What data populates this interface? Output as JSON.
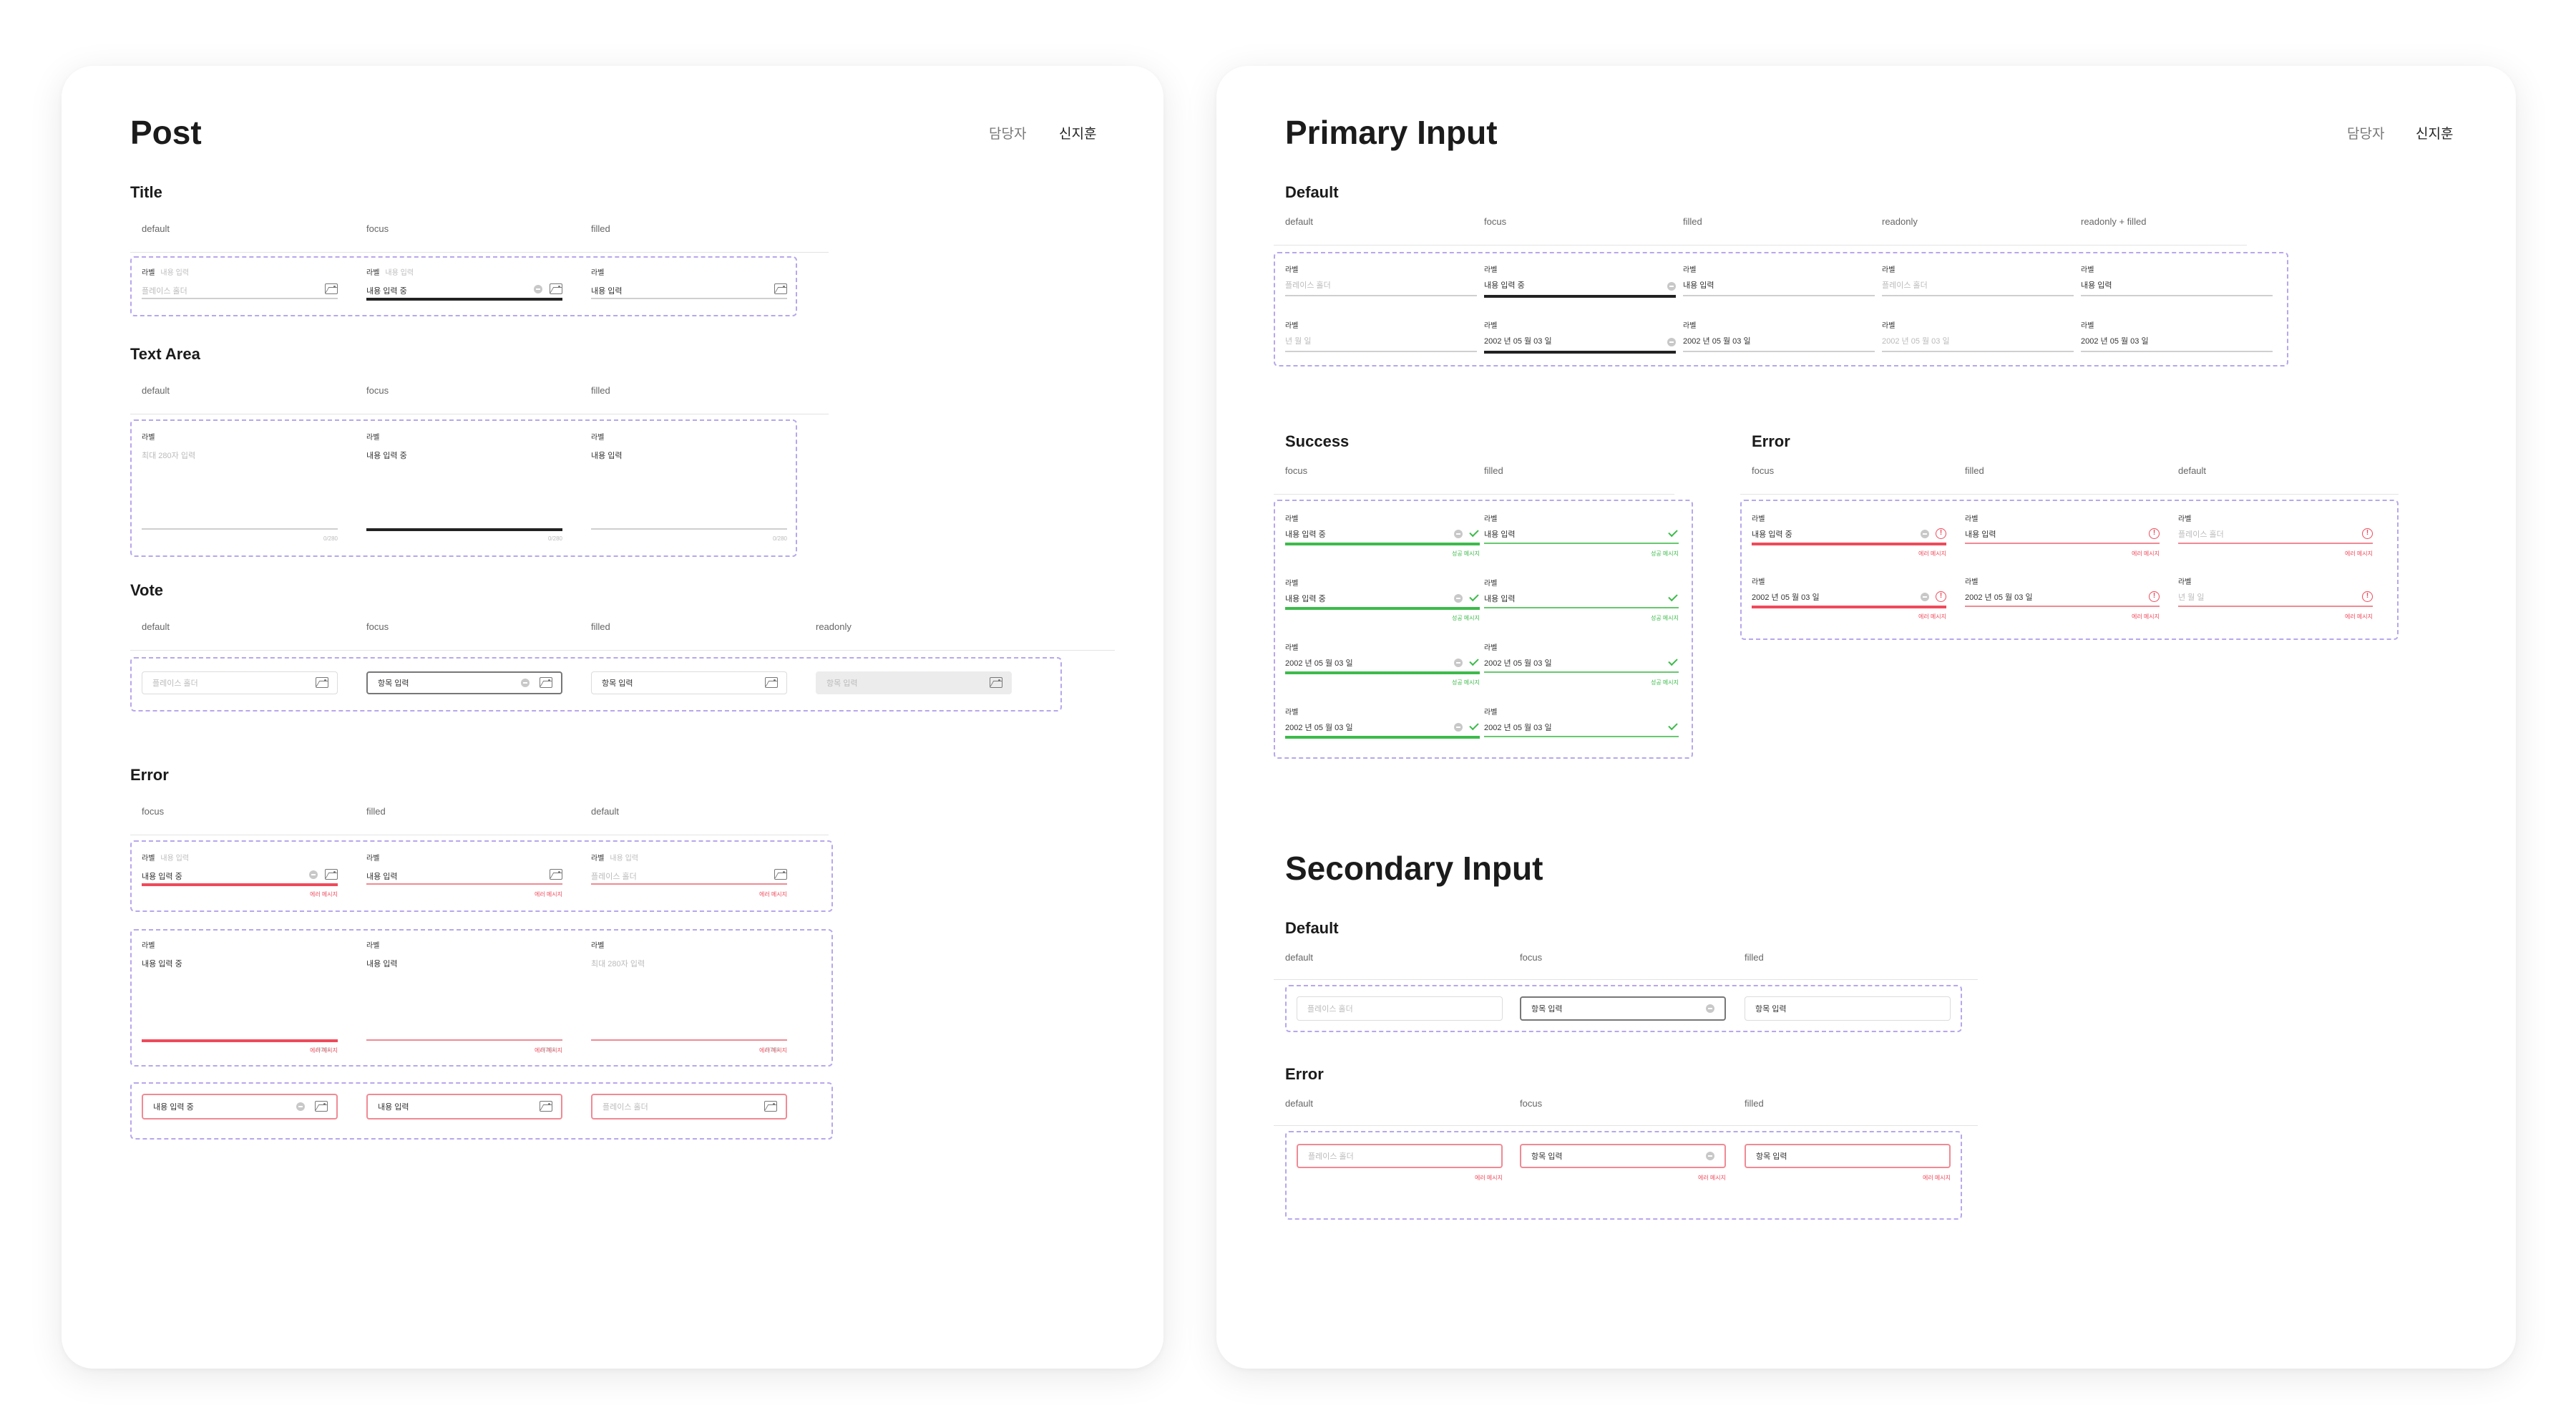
{
  "post": {
    "title": "Post",
    "owner_label": "담당자",
    "owner_name": "신지훈",
    "sections": {
      "title": "Title",
      "textarea": "Text Area",
      "vote": "Vote",
      "error": "Error"
    },
    "states": {
      "default": "default",
      "focus": "focus",
      "filled": "filled",
      "readonly": "readonly"
    },
    "label": "라벨",
    "label_sub": "내용 입력",
    "placeholder": "플레이스 홀더",
    "value_typing": "내용 입력 중",
    "value_filled": "내용 입력",
    "textarea_placeholder": "최대 280자 입력",
    "counter": "0/280",
    "vote_value": "항목 입력",
    "error_message": "에러 메시지"
  },
  "primary": {
    "title": "Primary Input",
    "owner_label": "담당자",
    "owner_name": "신지훈",
    "sections": {
      "default": "Default",
      "success": "Success",
      "error": "Error"
    },
    "states": {
      "default": "default",
      "focus": "focus",
      "filled": "filled",
      "readonly": "readonly",
      "readonly_filled": "readonly + filled"
    },
    "label": "라벨",
    "placeholder": "플레이스 홀더",
    "value_typing": "내용 입력 중",
    "value_filled": "내용 입력",
    "date_placeholder": "년   월   일",
    "date_value": "2002 년  05 월  03 일",
    "success_message": "성공 메시지",
    "error_message": "에러 메시지"
  },
  "secondary": {
    "title": "Secondary Input",
    "sections": {
      "default": "Default",
      "error": "Error"
    },
    "states": {
      "default": "default",
      "focus": "focus",
      "filled": "filled"
    },
    "placeholder": "플레이스 홀더",
    "value": "항목 입력",
    "error_message": "에러 메시지"
  },
  "colors": {
    "accent_dashed": "#b7a7ec",
    "error": "#ef4a5b",
    "success": "#3dbb4b",
    "focus": "#222222"
  },
  "icons": [
    "clear-icon",
    "image-icon",
    "check-icon",
    "error-icon"
  ]
}
